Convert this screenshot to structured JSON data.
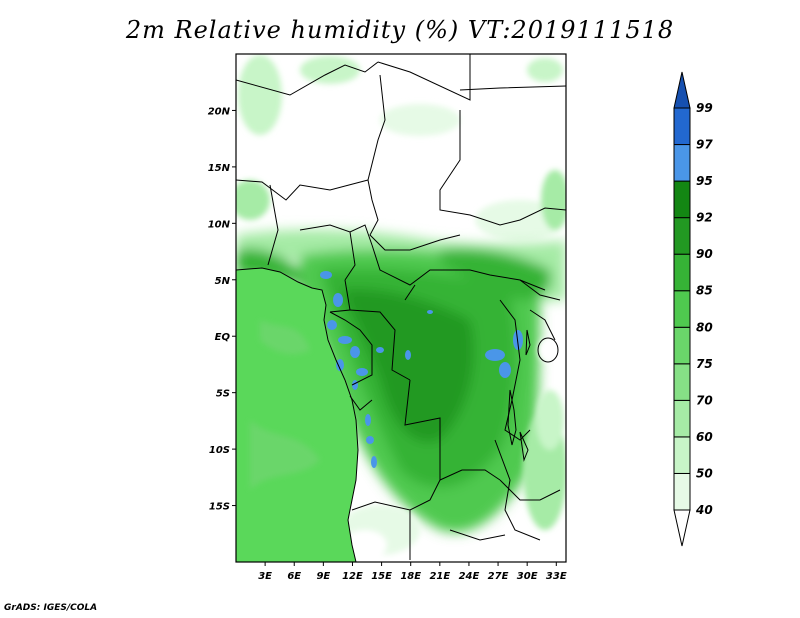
{
  "title": "2m Relative humidity (%) VT:2019111518",
  "credit": "GrADS: IGES/COLA",
  "map": {
    "lon_range": [
      0,
      34
    ],
    "lat_range": [
      -20,
      25
    ],
    "lat_ticks": [
      {
        "value": 20,
        "label": "20N"
      },
      {
        "value": 15,
        "label": "15N"
      },
      {
        "value": 10,
        "label": "10N"
      },
      {
        "value": 5,
        "label": "5N"
      },
      {
        "value": 0,
        "label": "EQ"
      },
      {
        "value": -5,
        "label": "5S"
      },
      {
        "value": -10,
        "label": "10S"
      },
      {
        "value": -15,
        "label": "15S"
      }
    ],
    "lon_ticks": [
      {
        "value": 3,
        "label": "3E"
      },
      {
        "value": 6,
        "label": "6E"
      },
      {
        "value": 9,
        "label": "9E"
      },
      {
        "value": 12,
        "label": "12E"
      },
      {
        "value": 15,
        "label": "15E"
      },
      {
        "value": 18,
        "label": "18E"
      },
      {
        "value": 21,
        "label": "21E"
      },
      {
        "value": 24,
        "label": "24E"
      },
      {
        "value": 27,
        "label": "27E"
      },
      {
        "value": 30,
        "label": "30E"
      },
      {
        "value": 33,
        "label": "33E"
      }
    ]
  },
  "colorbar": {
    "levels": [
      "40",
      "50",
      "60",
      "70",
      "75",
      "80",
      "85",
      "90",
      "92",
      "95",
      "97",
      "99"
    ],
    "colors": [
      "#ffffff",
      "#e6fae6",
      "#c8f5c8",
      "#a6eba6",
      "#86e086",
      "#6ad66a",
      "#4fc94f",
      "#36b336",
      "#229922",
      "#138613",
      "#4a96e8",
      "#2268d0",
      "#1650b0"
    ]
  },
  "palette": {
    "ocean": "#5ad85a",
    "coast": "#7ee07e",
    "humid": "#27a827",
    "very_humid": "#178a17",
    "blue": "#4a96e8",
    "dry": "#ffffff",
    "light": "#e6fae6"
  }
}
